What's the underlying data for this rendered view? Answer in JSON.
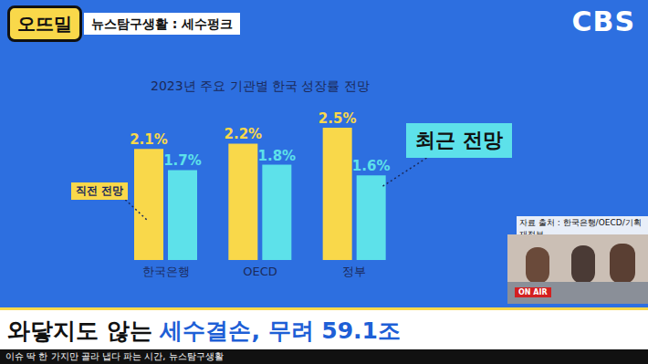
{
  "chart_data": {
    "type": "bar",
    "title": "2023년 주요 기관별 한국 성장률 전망",
    "categories": [
      "한국은행",
      "OECD",
      "정부"
    ],
    "series": [
      {
        "name": "직전 전망",
        "color": "#f9d84a",
        "values": [
          2.1,
          2.2,
          2.5
        ],
        "value_labels": [
          "2.1%",
          "2.2%",
          "2.5%"
        ]
      },
      {
        "name": "최근 전망",
        "color": "#5de1ea",
        "values": [
          1.7,
          1.8,
          1.6
        ],
        "value_labels": [
          "1.7%",
          "1.8%",
          "1.6%"
        ]
      }
    ],
    "ylim": [
      0,
      2.5
    ],
    "data_labels": true,
    "tick_labels": "x",
    "grid": false
  },
  "screen": {
    "logo": "오뜨밀",
    "program": "뉴스탐구생활 : 세수펑크",
    "broadcaster": "CBS",
    "source": "자료 출처 : 한국은행/OECD/기획재정부",
    "on_air": "ON AIR",
    "headline": {
      "plain": "와닿지도 않는 ",
      "highlight": "세수결손, 무려 59.1조"
    },
    "ticker": "이슈 딱 한 가지만 골라 냅다 파는 시간, 뉴스탐구생활"
  }
}
